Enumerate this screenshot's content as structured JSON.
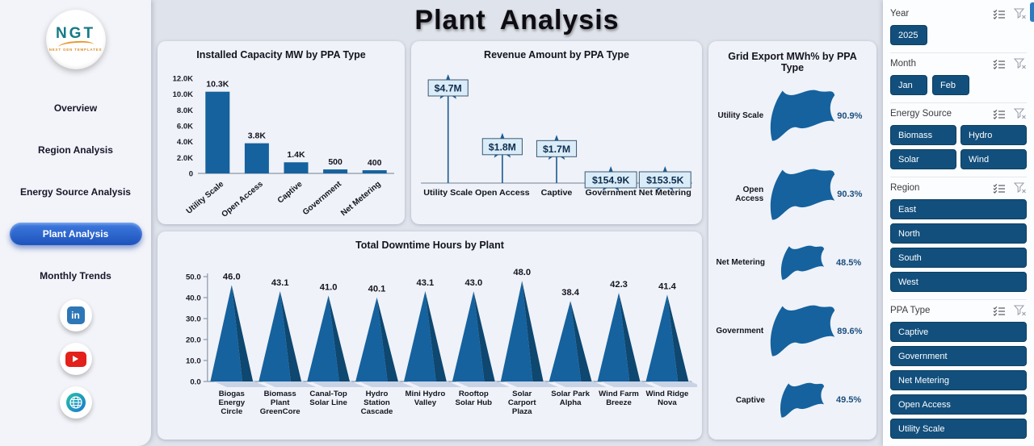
{
  "title": "Plant  Analysis",
  "sidebar": {
    "logo_text": "NGT",
    "logo_subtext": "NEXT GEN TEMPLATES",
    "nav": [
      {
        "label": "Overview",
        "active": false
      },
      {
        "label": "Region Analysis",
        "active": false
      },
      {
        "label": "Energy Source Analysis",
        "active": false
      },
      {
        "label": "Plant  Analysis",
        "active": true
      },
      {
        "label": "Monthly Trends",
        "active": false
      }
    ],
    "social": [
      "linkedin",
      "youtube",
      "website"
    ]
  },
  "filters": [
    {
      "label": "Year",
      "layout": "row",
      "options": [
        "2025"
      ]
    },
    {
      "label": "Month",
      "layout": "row",
      "options": [
        "Jan",
        "Feb"
      ]
    },
    {
      "label": "Energy Source",
      "layout": "grid2",
      "options": [
        "Biomass",
        "Hydro",
        "Solar",
        "Wind"
      ]
    },
    {
      "label": "Region",
      "layout": "list",
      "options": [
        "East",
        "North",
        "South",
        "West"
      ]
    },
    {
      "label": "PPA Type",
      "layout": "list",
      "options": [
        "Captive",
        "Government",
        "Net Metering",
        "Open Access",
        "Utility Scale"
      ]
    }
  ],
  "chart_data": [
    {
      "type": "bar",
      "title": "Installed Capacity MW by PPA Type",
      "categories": [
        "Utility Scale",
        "Open Access",
        "Captive",
        "Government",
        "Net Metering"
      ],
      "values": [
        10300,
        3800,
        1400,
        500,
        400
      ],
      "labels": [
        "10.3K",
        "3.8K",
        "1.4K",
        "500",
        "400"
      ],
      "ylabel": "",
      "xlabel": "",
      "ylim": [
        0,
        12000
      ],
      "yticks": [
        0,
        2000,
        4000,
        6000,
        8000,
        10000,
        12000
      ],
      "ytick_labels": [
        "0",
        "2.0K",
        "4.0K",
        "6.0K",
        "8.0K",
        "10.0K",
        "12.0K"
      ],
      "grid": false,
      "legend": false
    },
    {
      "type": "lollipop",
      "title": "Revenue Amount by PPA Type",
      "categories": [
        "Utility Scale",
        "Open Access",
        "Captive",
        "Government",
        "Net Metering"
      ],
      "values": [
        4700000,
        1800000,
        1700000,
        154900,
        153500
      ],
      "labels": [
        "$4.7M",
        "$1.8M",
        "$1.7M",
        "$154.9K",
        "$153.5K"
      ],
      "ylim": [
        0,
        4700000
      ],
      "grid": false,
      "legend": false
    },
    {
      "type": "flags",
      "title": "Grid Export MWh% by PPA Type",
      "categories": [
        "Utility Scale",
        "Open Access",
        "Net Metering",
        "Government",
        "Captive"
      ],
      "values": [
        90.9,
        90.3,
        48.5,
        89.6,
        49.5
      ],
      "labels": [
        "90.9%",
        "90.3%",
        "48.5%",
        "89.6%",
        "49.5%"
      ],
      "grid": false,
      "legend": false
    },
    {
      "type": "cones",
      "title": "Total Downtime Hours by Plant",
      "categories": [
        [
          "Biogas",
          "Energy",
          "Circle"
        ],
        [
          "Biomass",
          "Plant",
          "GreenCore"
        ],
        [
          "Canal-Top",
          "Solar Line"
        ],
        [
          "Hydro",
          "Station",
          "Cascade"
        ],
        [
          "Mini Hydro",
          "Valley"
        ],
        [
          "Rooftop",
          "Solar Hub"
        ],
        [
          "Solar",
          "Carport",
          "Plaza"
        ],
        [
          "Solar Park",
          "Alpha"
        ],
        [
          "Wind Farm",
          "Breeze"
        ],
        [
          "Wind Ridge",
          "Nova"
        ]
      ],
      "values": [
        46.0,
        43.1,
        41.0,
        40.1,
        43.1,
        43.0,
        48.0,
        38.4,
        42.3,
        41.4
      ],
      "labels": [
        "46.0",
        "43.1",
        "41.0",
        "40.1",
        "43.1",
        "43.0",
        "48.0",
        "38.4",
        "42.3",
        "41.4"
      ],
      "ylim": [
        0,
        50
      ],
      "yticks": [
        0,
        10,
        20,
        30,
        40,
        50
      ],
      "ytick_labels": [
        "0.0",
        "10.0",
        "20.0",
        "30.0",
        "40.0",
        "50.0"
      ],
      "grid": false,
      "legend": false
    }
  ],
  "colors": {
    "primary": "#15629E",
    "cone_dark": "#0E4770",
    "star": "#1D5C94",
    "label_box_fill": "#D9ECF8",
    "label_box_border": "#3D5A75",
    "pct_text": "#1C4F7E",
    "shadow": "#C9D3E6",
    "axis": "#8A97A8",
    "button_blue": "#124F7C",
    "active_nav": "#1D53BC"
  }
}
